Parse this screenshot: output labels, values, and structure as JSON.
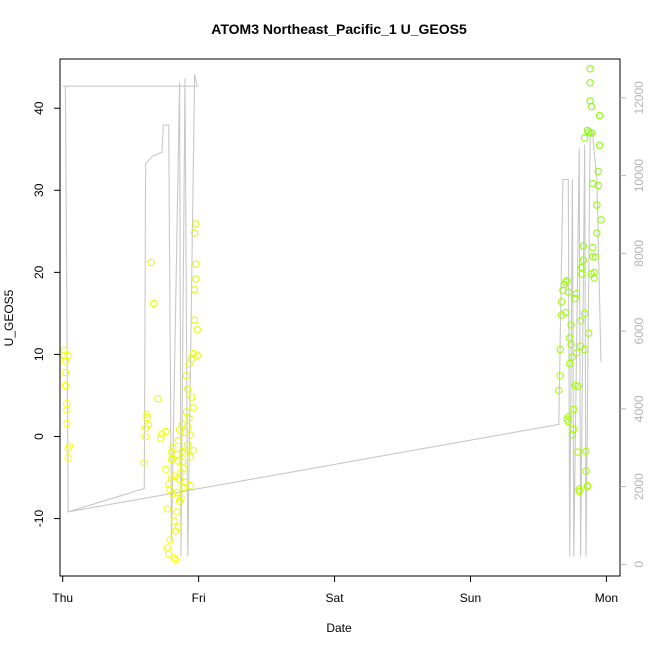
{
  "chart_data": {
    "type": "scatter",
    "title": "ATOM3 Northeast_Pacific_1 U_GEOS5",
    "xlabel": "Date",
    "ylabel": "U_GEOS5",
    "x_ticks": [
      "Thu",
      "Fri",
      "Sat",
      "Sun",
      "Mon"
    ],
    "xlim": [
      -0.02,
      4.1
    ],
    "ylim": [
      -17,
      46
    ],
    "y_ticks": [
      -10,
      0,
      10,
      20,
      30,
      40
    ],
    "y2_ticks": [
      0,
      2000,
      4000,
      6000,
      8000,
      10000,
      12000
    ],
    "y2lim": [
      -300,
      13000
    ],
    "grid": false,
    "series": [
      {
        "kind": "points",
        "color_low": "#ffff00",
        "color_high": "#7cfc00",
        "points": [
          [
            0.01,
            9.8
          ],
          [
            0.01,
            10.5
          ],
          [
            0.02,
            9.2
          ],
          [
            0.02,
            7.8
          ],
          [
            0.02,
            6.2
          ],
          [
            0.03,
            4.0
          ],
          [
            0.03,
            3.2
          ],
          [
            0.03,
            1.6
          ],
          [
            0.04,
            -1.5
          ],
          [
            0.04,
            -2.6
          ],
          [
            0.05,
            -1.2
          ],
          [
            0.04,
            9.9
          ],
          [
            0.6,
            -3.2
          ],
          [
            0.61,
            0.0
          ],
          [
            0.61,
            1.0
          ],
          [
            0.62,
            2.3
          ],
          [
            0.62,
            2.7
          ],
          [
            0.63,
            1.4
          ],
          [
            0.65,
            21.2
          ],
          [
            0.67,
            16.2
          ],
          [
            0.7,
            4.6
          ],
          [
            0.72,
            -0.2
          ],
          [
            0.73,
            0.3
          ],
          [
            0.76,
            -4.0
          ],
          [
            0.77,
            -8.8
          ],
          [
            0.77,
            -13.6
          ],
          [
            0.78,
            -14.3
          ],
          [
            0.79,
            -12.6
          ],
          [
            0.79,
            -6.5
          ],
          [
            0.8,
            -2.8
          ],
          [
            0.8,
            -5.1
          ],
          [
            0.81,
            -1.3
          ],
          [
            0.81,
            -7.0
          ],
          [
            0.82,
            -10.3
          ],
          [
            0.82,
            -14.8
          ],
          [
            0.83,
            -15.0
          ],
          [
            0.83,
            -11.5
          ],
          [
            0.84,
            -9.2
          ],
          [
            0.84,
            -6.8
          ],
          [
            0.85,
            -3.0
          ],
          [
            0.85,
            -0.5
          ],
          [
            0.86,
            0.8
          ],
          [
            0.86,
            -5.2
          ],
          [
            0.87,
            -7.5
          ],
          [
            0.87,
            -4.4
          ],
          [
            0.88,
            -1.8
          ],
          [
            0.88,
            1.5
          ],
          [
            0.89,
            -3.9
          ],
          [
            0.89,
            -6.2
          ],
          [
            0.9,
            -2.0
          ],
          [
            0.9,
            0.5
          ],
          [
            0.91,
            3.0
          ],
          [
            0.91,
            7.4
          ],
          [
            0.92,
            5.8
          ],
          [
            0.92,
            -1.0
          ],
          [
            0.93,
            2.2
          ],
          [
            0.93,
            8.8
          ],
          [
            0.94,
            -2.5
          ],
          [
            0.94,
            0.2
          ],
          [
            0.95,
            4.8
          ],
          [
            0.95,
            9.5
          ],
          [
            0.96,
            10.1
          ],
          [
            0.96,
            -1.7
          ],
          [
            0.97,
            14.2
          ],
          [
            0.97,
            17.9
          ],
          [
            0.98,
            19.2
          ],
          [
            0.98,
            21.0
          ],
          [
            0.97,
            24.8
          ],
          [
            0.98,
            25.9
          ],
          [
            0.99,
            13.0
          ],
          [
            0.99,
            9.9
          ],
          [
            0.76,
            0.6
          ],
          [
            0.78,
            -5.8
          ],
          [
            0.8,
            -1.9
          ],
          [
            0.82,
            -4.8
          ],
          [
            0.84,
            -2.2
          ],
          [
            0.86,
            -7.9
          ],
          [
            0.88,
            -3.1
          ],
          [
            0.9,
            -5.6
          ],
          [
            0.92,
            1.2
          ],
          [
            0.94,
            -6.0
          ],
          [
            0.96,
            3.5
          ],
          [
            0.85,
            -11.0
          ],
          [
            3.65,
            5.6
          ],
          [
            3.66,
            7.4
          ],
          [
            3.66,
            10.6
          ],
          [
            3.67,
            14.8
          ],
          [
            3.67,
            16.4
          ],
          [
            3.68,
            17.8
          ],
          [
            3.69,
            18.5
          ],
          [
            3.7,
            15.1
          ],
          [
            3.7,
            18.8
          ],
          [
            3.71,
            19.0
          ],
          [
            3.72,
            17.6
          ],
          [
            3.71,
            2.1
          ],
          [
            3.72,
            2.4
          ],
          [
            3.72,
            1.8
          ],
          [
            3.73,
            8.9
          ],
          [
            3.73,
            12.0
          ],
          [
            3.74,
            13.6
          ],
          [
            3.74,
            11.2
          ],
          [
            3.75,
            9.7
          ],
          [
            3.75,
            0.2
          ],
          [
            3.76,
            0.9
          ],
          [
            3.76,
            3.3
          ],
          [
            3.77,
            6.2
          ],
          [
            3.77,
            16.8
          ],
          [
            3.78,
            17.4
          ],
          [
            3.78,
            10.2
          ],
          [
            3.79,
            6.1
          ],
          [
            3.79,
            -1.9
          ],
          [
            3.8,
            -6.4
          ],
          [
            3.8,
            -6.7
          ],
          [
            3.81,
            11.0
          ],
          [
            3.81,
            14.1
          ],
          [
            3.82,
            19.8
          ],
          [
            3.82,
            20.6
          ],
          [
            3.83,
            23.2
          ],
          [
            3.83,
            21.5
          ],
          [
            3.84,
            15.0
          ],
          [
            3.84,
            10.6
          ],
          [
            3.85,
            -1.8
          ],
          [
            3.85,
            -4.2
          ],
          [
            3.86,
            -6.0
          ],
          [
            3.86,
            -6.1
          ],
          [
            3.87,
            12.6
          ],
          [
            3.87,
            37.1
          ],
          [
            3.88,
            43.1
          ],
          [
            3.88,
            44.8
          ],
          [
            3.88,
            40.9
          ],
          [
            3.89,
            40.2
          ],
          [
            3.89,
            37.0
          ],
          [
            3.9,
            30.8
          ],
          [
            3.9,
            21.9
          ],
          [
            3.91,
            19.3
          ],
          [
            3.91,
            20.0
          ],
          [
            3.92,
            21.9
          ],
          [
            3.93,
            24.8
          ],
          [
            3.93,
            28.2
          ],
          [
            3.94,
            30.6
          ],
          [
            3.94,
            32.3
          ],
          [
            3.95,
            35.5
          ],
          [
            3.95,
            39.1
          ],
          [
            3.96,
            26.4
          ],
          [
            3.89,
            19.8
          ],
          [
            3.9,
            23.0
          ],
          [
            3.86,
            37.3
          ],
          [
            3.84,
            36.4
          ]
        ]
      },
      {
        "kind": "altitude-line",
        "name": "",
        "axis": "right",
        "color": "#c8c8c8",
        "points": [
          [
            0.0,
            12300
          ],
          [
            0.02,
            12300
          ],
          [
            0.04,
            1350
          ],
          [
            0.6,
            1950
          ],
          [
            0.61,
            10300
          ],
          [
            0.66,
            10500
          ],
          [
            0.73,
            10600
          ],
          [
            0.74,
            11300
          ],
          [
            0.78,
            11300
          ],
          [
            0.8,
            600
          ],
          [
            0.86,
            12400
          ],
          [
            0.87,
            200
          ],
          [
            0.9,
            12500
          ],
          [
            0.92,
            200
          ],
          [
            0.97,
            12600
          ],
          [
            0.99,
            12300
          ],
          [
            0.025,
            12300
          ],
          [
            0.99,
            12300
          ],
          [
            0.98,
            12300
          ],
          [
            0.02,
            12300
          ],
          [
            0.04,
            1350
          ],
          [
            3.65,
            3600
          ],
          [
            3.68,
            9900
          ],
          [
            3.72,
            9900
          ],
          [
            3.73,
            200
          ],
          [
            3.75,
            9900
          ],
          [
            3.76,
            200
          ],
          [
            3.8,
            10700
          ],
          [
            3.81,
            200
          ],
          [
            3.84,
            10800
          ],
          [
            3.85,
            200
          ],
          [
            3.88,
            11000
          ],
          [
            3.9,
            11100
          ],
          [
            3.91,
            10600
          ],
          [
            3.93,
            9900
          ],
          [
            3.96,
            5200
          ]
        ]
      }
    ]
  }
}
